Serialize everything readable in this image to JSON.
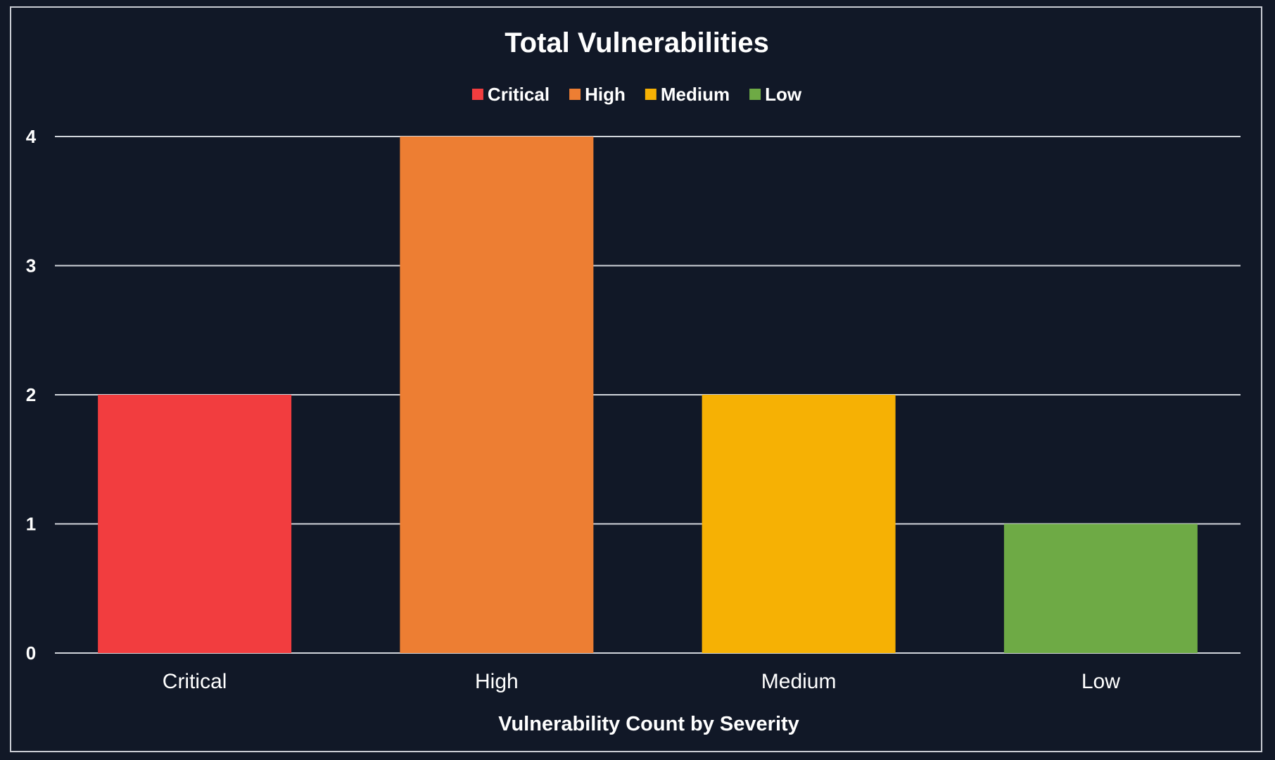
{
  "chart_data": {
    "type": "bar",
    "title": "Total Vulnerabilities",
    "xlabel": "Vulnerability Count by Severity",
    "ylabel": "",
    "categories": [
      "Critical",
      "High",
      "Medium",
      "Low"
    ],
    "values": [
      2,
      4,
      2,
      1
    ],
    "colors": [
      "#f23d3f",
      "#ed7e33",
      "#f6b104",
      "#6eaa45"
    ],
    "ylim": [
      0,
      4
    ],
    "yticks": [
      "0",
      "1",
      "2",
      "3",
      "4"
    ],
    "grid": true,
    "legend": {
      "placement": "top-center",
      "entries": [
        {
          "label": "Critical",
          "color": "#f23d3f"
        },
        {
          "label": "High",
          "color": "#ed7e33"
        },
        {
          "label": "Medium",
          "color": "#f6b104"
        },
        {
          "label": "Low",
          "color": "#6eaa45"
        }
      ]
    }
  }
}
